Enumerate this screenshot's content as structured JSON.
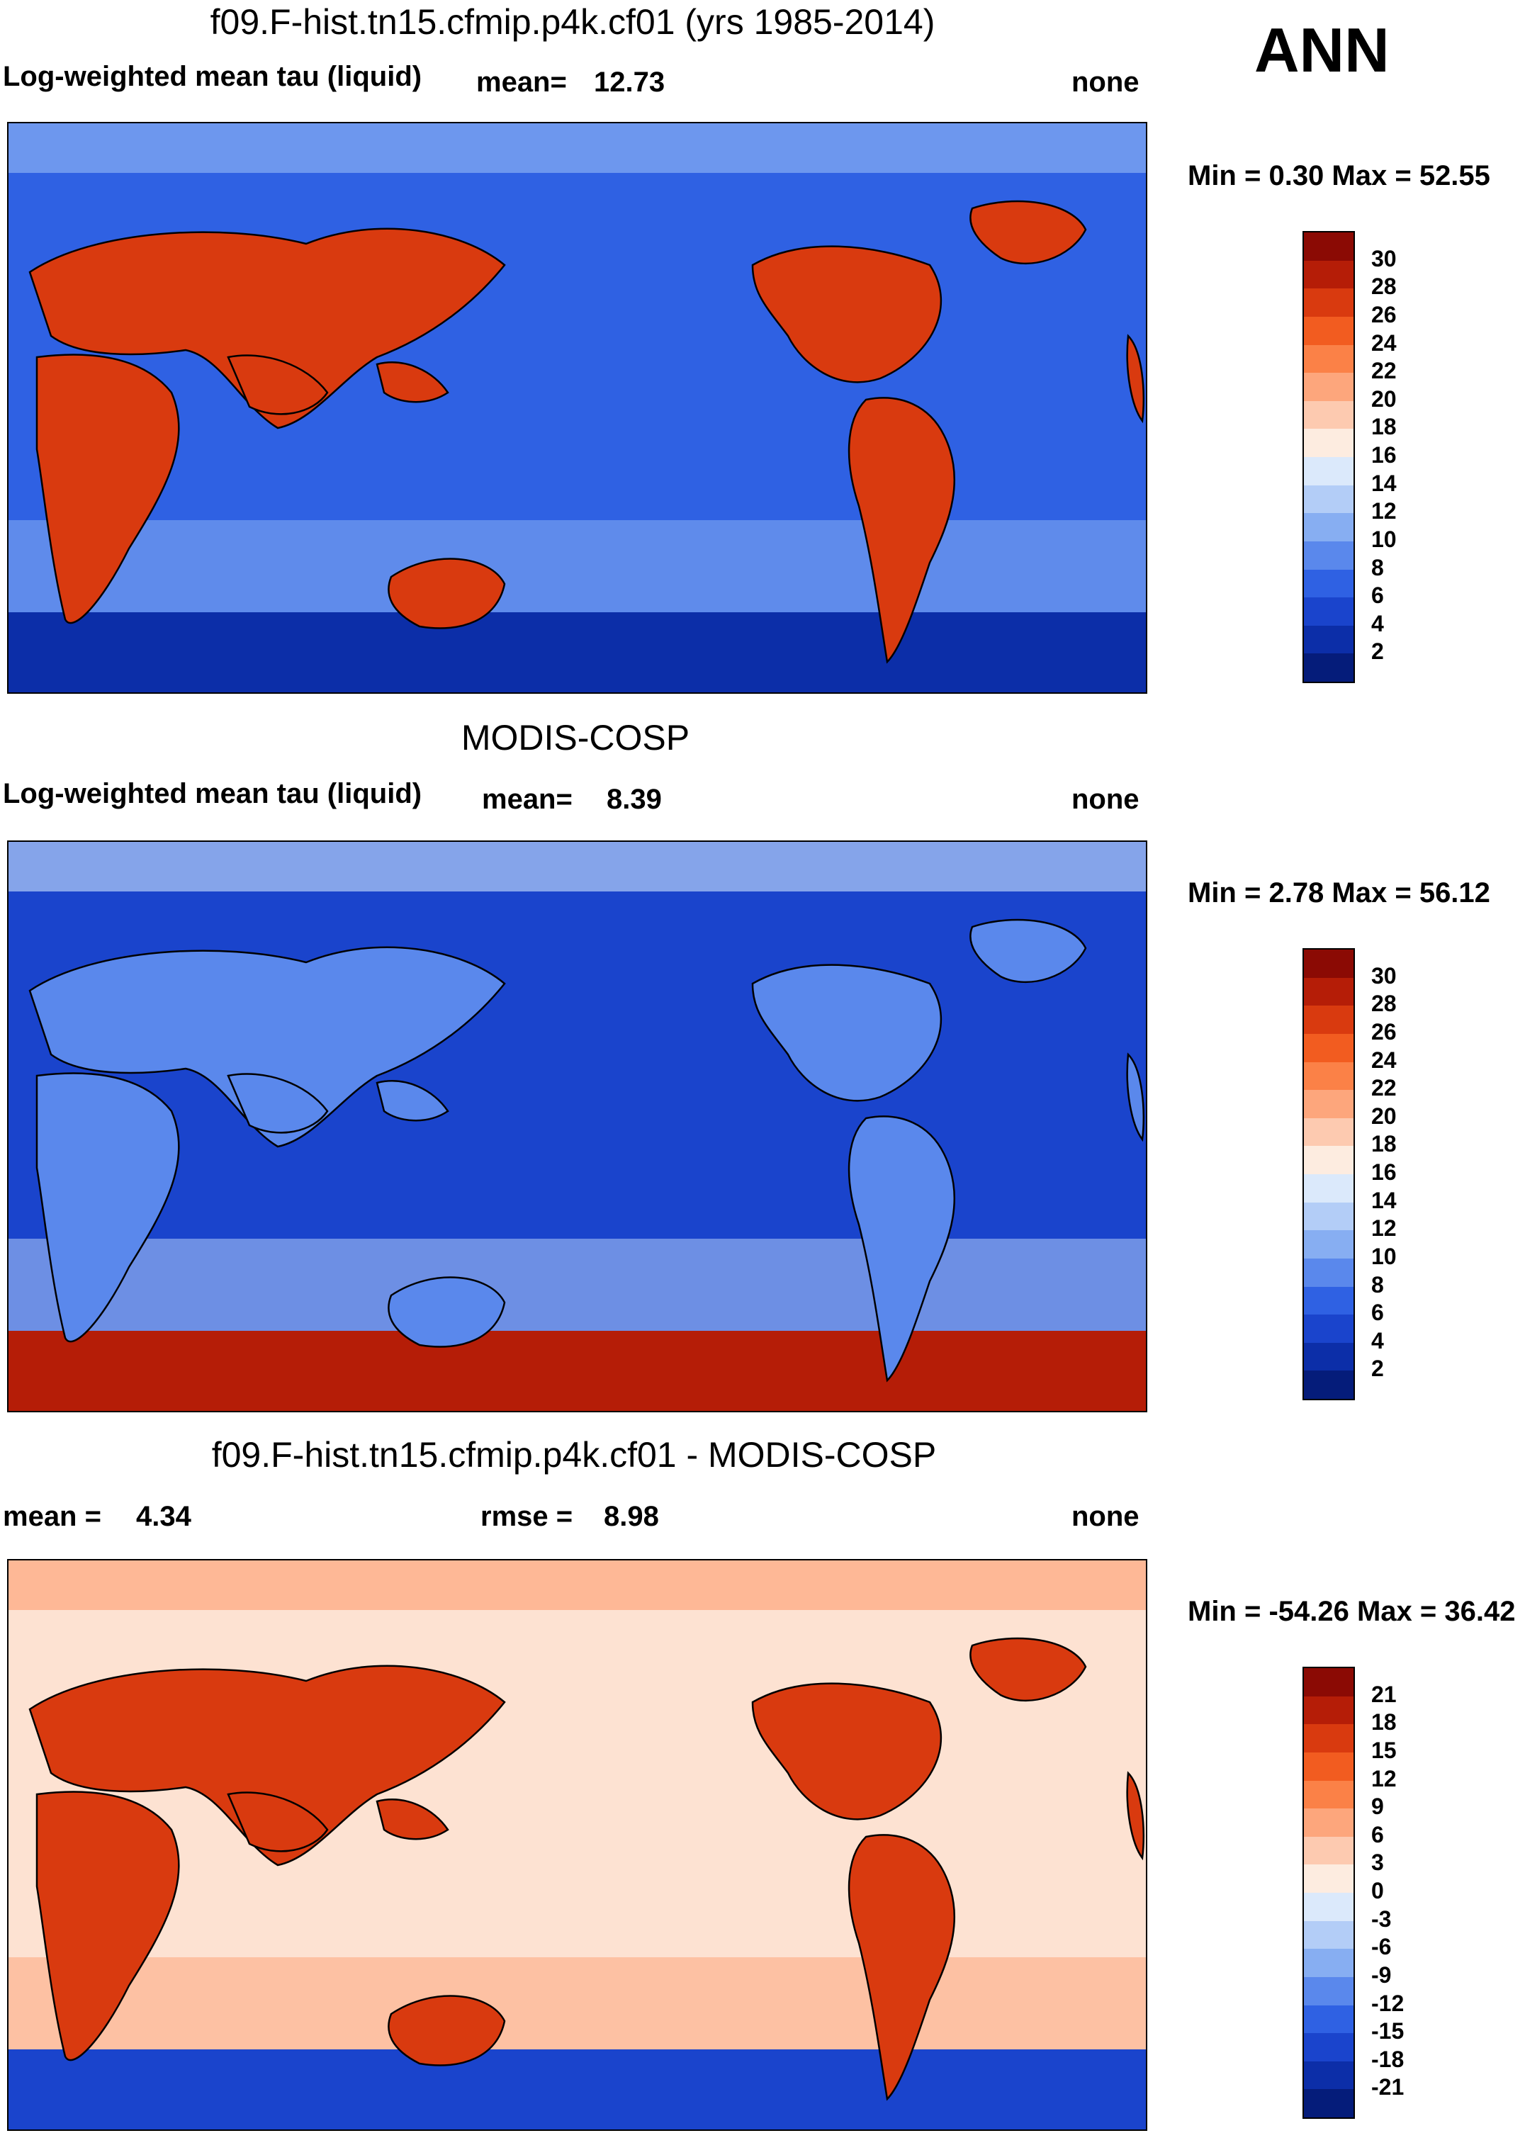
{
  "season": "ANN",
  "panels": [
    {
      "title": "f09.F-hist.tn15.cfmip.p4k.cf01 (yrs 1985-2014)",
      "variable": "Log-weighted mean tau (liquid)",
      "stat_label": "mean=",
      "stat_value": "12.73",
      "units": "none",
      "minmax": "Min =   0.30 Max =  52.55",
      "colorbar": {
        "labels": [
          "30",
          "28",
          "26",
          "24",
          "22",
          "20",
          "18",
          "16",
          "14",
          "12",
          "10",
          "8",
          "6",
          "4",
          "2"
        ],
        "colors": [
          "#8b0a04",
          "#b51d07",
          "#d93a0f",
          "#f25c20",
          "#fb8147",
          "#fda67c",
          "#fdcab0",
          "#fdece0",
          "#dbe9fb",
          "#b3cdf7",
          "#87aef2",
          "#5a88ec",
          "#2f61e3",
          "#1a44cc",
          "#0c2ea8",
          "#051c7a"
        ]
      },
      "map": {
        "ocean": "#2f61e3",
        "land": "#d93a0f",
        "accent": "#87aef2",
        "polar": "#0c2ea8"
      }
    },
    {
      "title": "MODIS-COSP",
      "variable": "Log-weighted mean tau (liquid)",
      "stat_label": "mean=",
      "stat_value": "8.39",
      "units": "none",
      "minmax": "Min =   2.78 Max =  56.12",
      "colorbar": {
        "labels": [
          "30",
          "28",
          "26",
          "24",
          "22",
          "20",
          "18",
          "16",
          "14",
          "12",
          "10",
          "8",
          "6",
          "4",
          "2"
        ],
        "colors": [
          "#8b0a04",
          "#b51d07",
          "#d93a0f",
          "#f25c20",
          "#fb8147",
          "#fda67c",
          "#fdcab0",
          "#fdece0",
          "#dbe9fb",
          "#b3cdf7",
          "#87aef2",
          "#5a88ec",
          "#2f61e3",
          "#1a44cc",
          "#0c2ea8",
          "#051c7a"
        ]
      },
      "map": {
        "ocean": "#1a44cc",
        "land": "#5a88ec",
        "accent": "#b3cdf7",
        "polar": "#b51d07"
      }
    },
    {
      "title": "f09.F-hist.tn15.cfmip.p4k.cf01 - MODIS-COSP",
      "variable": "mean =",
      "stat_label": "",
      "stat_value": "4.34",
      "rmse_label": "rmse =",
      "rmse_value": "8.98",
      "units": "none",
      "minmax": "Min = -54.26 Max =  36.42",
      "colorbar": {
        "labels": [
          "21",
          "18",
          "15",
          "12",
          "9",
          "6",
          "3",
          "0",
          "-3",
          "-6",
          "-9",
          "-12",
          "-15",
          "-18",
          "-21"
        ],
        "colors": [
          "#8b0a04",
          "#b51d07",
          "#d93a0f",
          "#f25c20",
          "#fb8147",
          "#fda67c",
          "#fdcab0",
          "#fdece0",
          "#dbe9fb",
          "#b3cdf7",
          "#87aef2",
          "#5a88ec",
          "#2f61e3",
          "#1a44cc",
          "#0c2ea8",
          "#051c7a"
        ]
      },
      "map": {
        "ocean": "#fde2d2",
        "land": "#d93a0f",
        "accent": "#fda67c",
        "polar": "#1a44cc"
      }
    }
  ]
}
